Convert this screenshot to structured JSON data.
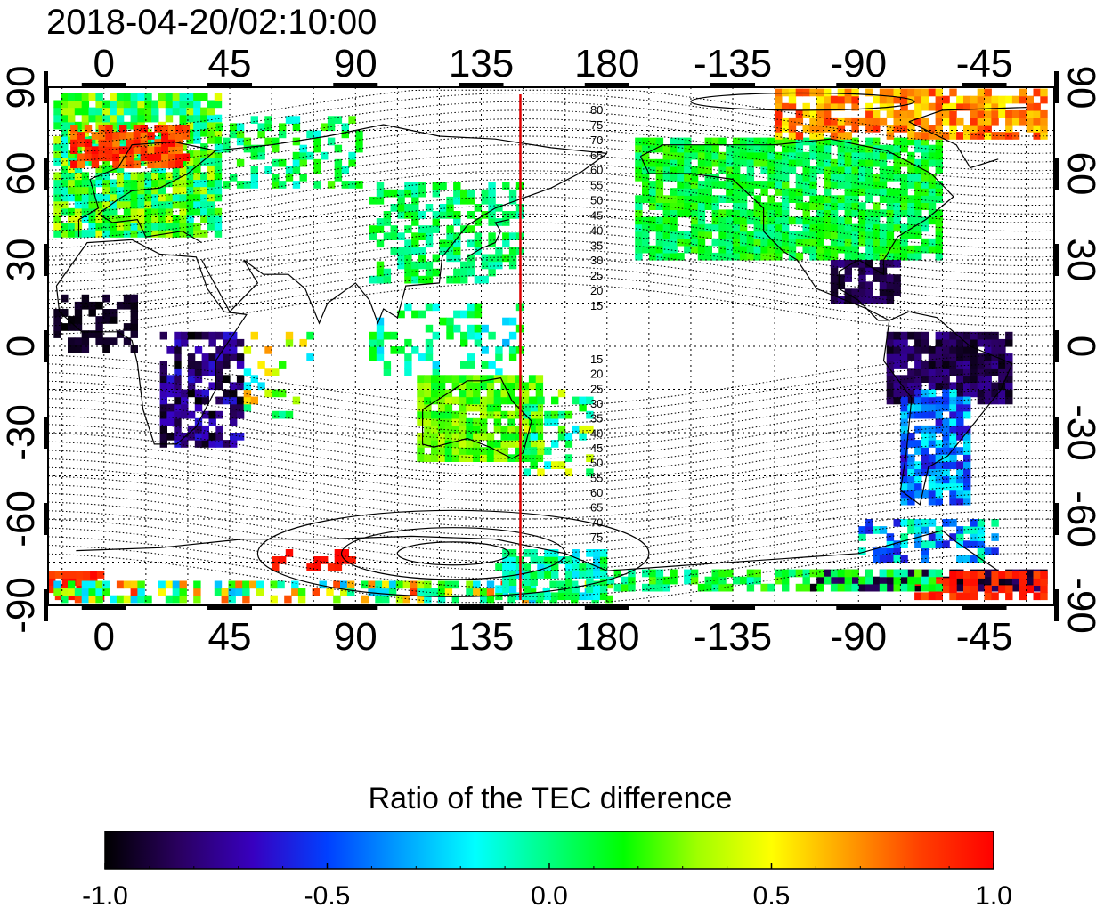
{
  "timestamp": "2018-04-20/02:10:00",
  "map": {
    "lon_ticks": [
      0,
      45,
      90,
      135,
      180,
      -135,
      -90,
      -45
    ],
    "lat_ticks": [
      90,
      60,
      30,
      0,
      -30,
      -60,
      -90
    ],
    "lon_range": [
      -20,
      340
    ],
    "lat_range": [
      -90,
      90
    ],
    "grid": true,
    "meridian_line": {
      "lon": 149,
      "color": "#dd0000"
    },
    "contour_labels_north": [
      "80",
      "75",
      "70",
      "65",
      "60",
      "55",
      "50",
      "45",
      "40",
      "35",
      "30",
      "25",
      "20",
      "15"
    ],
    "contour_labels_south": [
      "15",
      "20",
      "25",
      "30",
      "35",
      "40",
      "45",
      "50",
      "55",
      "60",
      "65",
      "70",
      "75"
    ]
  },
  "colorbar": {
    "title": "Ratio of the TEC difference",
    "ticks": [
      "-1.0",
      "-0.5",
      "0.0",
      "0.5",
      "1.0"
    ],
    "range": [
      -1.0,
      1.0
    ],
    "colors": [
      "#000000",
      "#2a0060",
      "#3800c0",
      "#0040ff",
      "#00a0ff",
      "#00ffff",
      "#00ff80",
      "#00ff00",
      "#a0ff00",
      "#ffff00",
      "#ffa000",
      "#ff4000",
      "#ff0000"
    ]
  }
}
